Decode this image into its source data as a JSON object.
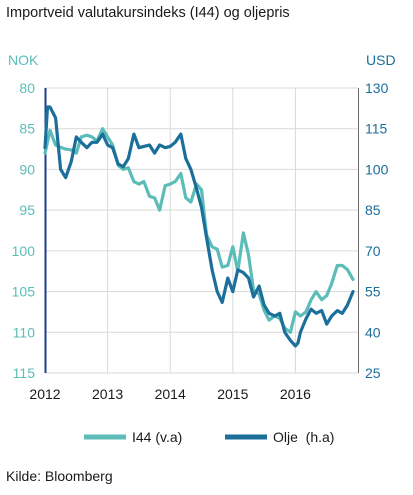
{
  "chart_data": {
    "type": "line",
    "title": "Importveid valutakursindeks (I44) og oljepris",
    "left_axis": {
      "label": "NOK",
      "range": [
        80,
        115
      ],
      "ticks": [
        "80",
        "85",
        "90",
        "95",
        "100",
        "105",
        "110",
        "115"
      ],
      "inverted": true,
      "color": "#5bbcb8"
    },
    "right_axis": {
      "label": "USD",
      "range": [
        25,
        130
      ],
      "ticks": [
        "130",
        "115",
        "100",
        "85",
        "70",
        "55",
        "40",
        "25"
      ],
      "color": "#1b6f9a"
    },
    "x_axis": {
      "range": [
        2012,
        2017
      ],
      "ticks": [
        "2012",
        "2013",
        "2014",
        "2015",
        "2016"
      ]
    },
    "grid": true,
    "series": [
      {
        "name": "I44 (v.a)",
        "axis": "left",
        "color": "#5bbcb8",
        "x": [
          2012.0,
          2012.08,
          2012.17,
          2012.25,
          2012.33,
          2012.42,
          2012.5,
          2012.58,
          2012.67,
          2012.75,
          2012.83,
          2012.92,
          2013.0,
          2013.08,
          2013.17,
          2013.25,
          2013.33,
          2013.42,
          2013.5,
          2013.58,
          2013.67,
          2013.75,
          2013.83,
          2013.92,
          2014.0,
          2014.08,
          2014.17,
          2014.25,
          2014.33,
          2014.42,
          2014.5,
          2014.58,
          2014.67,
          2014.75,
          2014.83,
          2014.92,
          2015.0,
          2015.08,
          2015.17,
          2015.25,
          2015.33,
          2015.42,
          2015.5,
          2015.58,
          2015.67,
          2015.75,
          2015.83,
          2015.92,
          2016.0,
          2016.08,
          2016.17,
          2016.25,
          2016.33,
          2016.42,
          2016.5,
          2016.58,
          2016.67,
          2016.75,
          2016.83,
          2016.92
        ],
        "values": [
          88.0,
          85.2,
          87.0,
          87.3,
          87.5,
          87.6,
          88.0,
          86.0,
          85.8,
          86.0,
          86.5,
          85.0,
          86.0,
          87.0,
          89.5,
          90.0,
          89.8,
          91.5,
          91.8,
          91.5,
          93.3,
          93.5,
          95.0,
          92.0,
          91.8,
          91.5,
          90.5,
          93.5,
          94.0,
          91.8,
          92.5,
          98.0,
          99.5,
          99.8,
          102.0,
          101.8,
          99.5,
          102.5,
          97.8,
          100.5,
          104.8,
          105.3,
          107.3,
          108.5,
          108.0,
          108.3,
          109.5,
          110.0,
          107.5,
          108.0,
          107.5,
          106.0,
          105.0,
          106.0,
          105.5,
          104.0,
          101.8,
          101.8,
          102.3,
          103.5
        ]
      },
      {
        "name": "Olje  (h.a)",
        "axis": "right",
        "color": "#1b6f9a",
        "x": [
          2012.0,
          2012.04,
          2012.08,
          2012.17,
          2012.25,
          2012.33,
          2012.42,
          2012.5,
          2012.58,
          2012.67,
          2012.75,
          2012.83,
          2012.92,
          2013.0,
          2013.08,
          2013.17,
          2013.25,
          2013.33,
          2013.42,
          2013.5,
          2013.58,
          2013.67,
          2013.75,
          2013.83,
          2013.92,
          2014.0,
          2014.08,
          2014.17,
          2014.25,
          2014.33,
          2014.42,
          2014.5,
          2014.58,
          2014.67,
          2014.75,
          2014.83,
          2014.92,
          2015.0,
          2015.08,
          2015.17,
          2015.25,
          2015.33,
          2015.42,
          2015.5,
          2015.58,
          2015.67,
          2015.75,
          2015.83,
          2015.92,
          2016.0,
          2016.04,
          2016.08,
          2016.17,
          2016.25,
          2016.33,
          2016.42,
          2016.5,
          2016.58,
          2016.67,
          2016.75,
          2016.83,
          2016.92
        ],
        "values": [
          108.0,
          123.0,
          123.0,
          119.0,
          100.0,
          97.0,
          103.0,
          112.0,
          110.0,
          108.0,
          110.0,
          110.0,
          113.0,
          109.0,
          108.0,
          102.0,
          101.0,
          104.0,
          113.0,
          108.0,
          108.5,
          109.0,
          106.0,
          109.0,
          108.0,
          108.5,
          110.0,
          113.0,
          104.0,
          100.0,
          93.0,
          86.0,
          75.0,
          63.0,
          55.0,
          51.0,
          60.0,
          55.0,
          63.0,
          62.0,
          60.0,
          53.0,
          57.0,
          50.0,
          47.0,
          46.0,
          47.0,
          40.0,
          37.0,
          35.0,
          36.0,
          40.0,
          45.0,
          48.5,
          47.0,
          48.0,
          43.0,
          46.0,
          48.0,
          47.0,
          50.0,
          55.0
        ]
      }
    ]
  },
  "source": "Kilde: Bloomberg"
}
